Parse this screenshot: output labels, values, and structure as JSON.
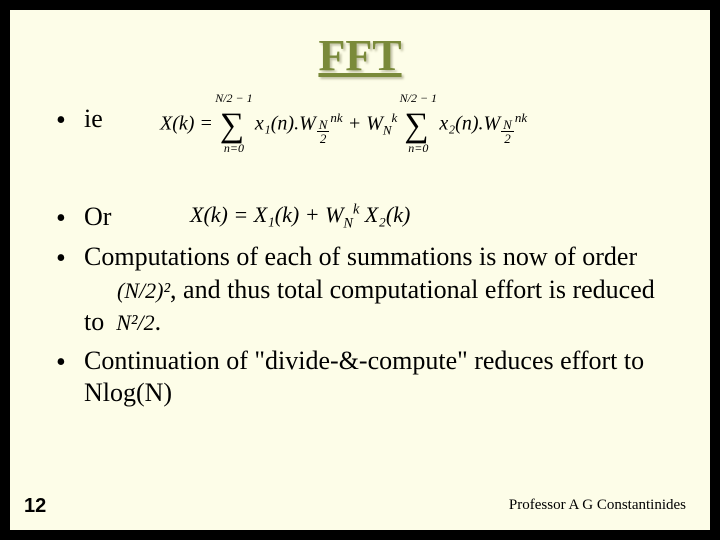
{
  "slide": {
    "title": "FFT",
    "title_color": "#7a8a3a",
    "background": "#fdfde8",
    "bullets": {
      "ie": "ie",
      "or": "Or",
      "comp_part1": "Computations of each of summations is now of order",
      "comp_mid": ", and thus total computational effort is reduced to",
      "cont": "Continuation of \"divide-&-compute\" reduces effort to Nlog(N)"
    },
    "formula_ie": {
      "lhs": "X(k) =",
      "sum1_top": "N/2 − 1",
      "sum1_bot": "n=0",
      "sum1_body": "x₁(n).",
      "W1": "W",
      "W1_sub": "N/2",
      "W1_sup": "nk",
      "plus": " + ",
      "Wmid": "W",
      "Wmid_sub": "N",
      "Wmid_sup": "k",
      "sum2_top": "N/2 − 1",
      "sum2_bot": "n=0",
      "sum2_body": "x₂(n).",
      "W2": "W",
      "W2_sub": "N/2",
      "W2_sup": "nk"
    },
    "formula_or": {
      "text1": "X(k) = X₁(k) + ",
      "W": "W",
      "W_sub": "N",
      "W_sup": "k",
      "text2": " X₂(k)"
    },
    "inline1_a": "(N",
    "inline1_b": "/2)²",
    "inline2_a": "N²",
    "inline2_b": "/2",
    "page_number": "12",
    "footer": "Professor A G Constantinides"
  }
}
